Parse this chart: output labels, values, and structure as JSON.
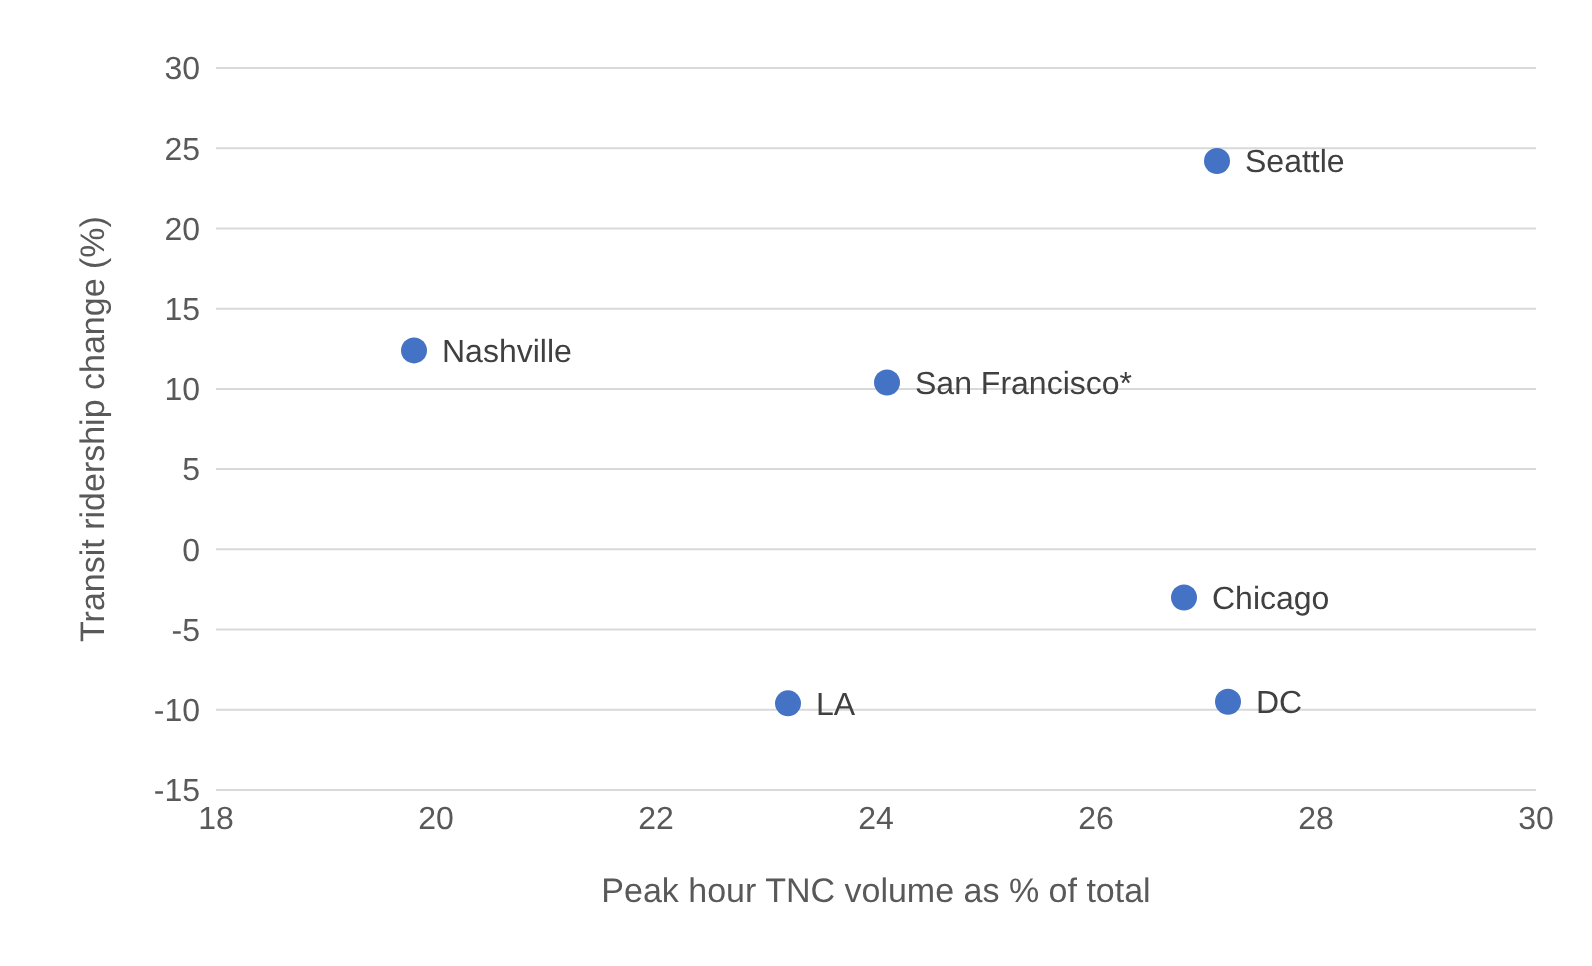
{
  "chart_data": {
    "type": "scatter",
    "xlabel": "Peak hour TNC volume as % of total",
    "ylabel": "Transit ridership change (%)",
    "x": [
      27.1,
      19.8,
      24.1,
      26.8,
      23.2,
      27.2
    ],
    "values": [
      24.2,
      12.4,
      10.4,
      -3.0,
      -9.6,
      -9.5
    ],
    "color": "#4472c4",
    "marker": "circle",
    "xlim": [
      18,
      30
    ],
    "xticks": [
      18,
      20,
      22,
      24,
      26,
      28,
      30
    ],
    "ylim": [
      -15,
      30
    ],
    "yticks": [
      -15,
      -10,
      -5,
      0,
      5,
      10,
      15,
      20,
      25,
      30
    ],
    "grid": "y",
    "annotations": [
      {
        "text": "Seattle",
        "x": 27.1,
        "y": 24.2
      },
      {
        "text": "Nashville",
        "x": 19.8,
        "y": 12.4
      },
      {
        "text": "San Francisco*",
        "x": 24.1,
        "y": 10.4
      },
      {
        "text": "Chicago",
        "x": 26.8,
        "y": -3.0
      },
      {
        "text": "LA",
        "x": 23.2,
        "y": -9.6
      },
      {
        "text": "DC",
        "x": 27.2,
        "y": -9.5
      }
    ]
  }
}
